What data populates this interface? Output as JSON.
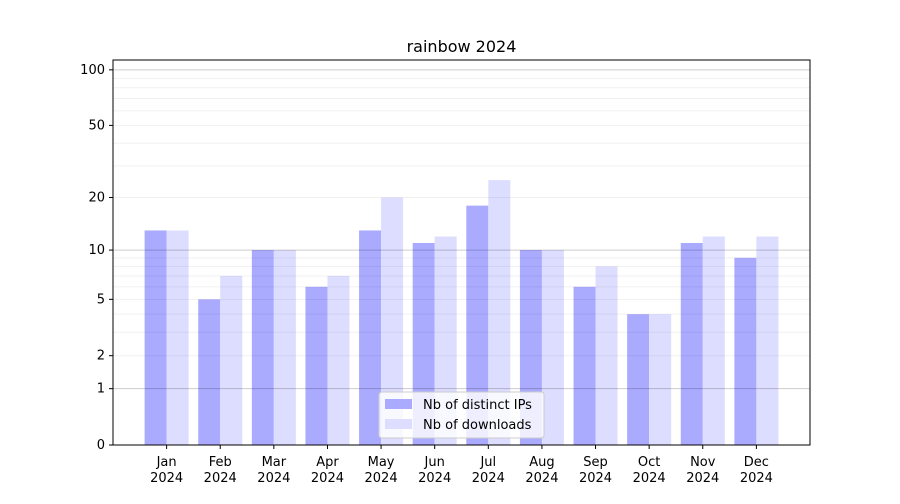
{
  "chart_data": {
    "type": "bar",
    "title": "rainbow 2024",
    "xlabel": "",
    "ylabel": "",
    "y_scale": "log10(y+1)",
    "ylim": [
      0,
      113
    ],
    "grid": "horizontal major and minor",
    "legend_position": "lower center",
    "categories": [
      "Jan\n2024",
      "Feb\n2024",
      "Mar\n2024",
      "Apr\n2024",
      "May\n2024",
      "Jun\n2024",
      "Jul\n2024",
      "Aug\n2024",
      "Sep\n2024",
      "Oct\n2024",
      "Nov\n2024",
      "Dec\n2024"
    ],
    "y_ticks": [
      0,
      1,
      2,
      5,
      10,
      20,
      50,
      100
    ],
    "series": [
      {
        "name": "Nb of distinct IPs",
        "color": "#aaaaff",
        "values": [
          13,
          5,
          10,
          6,
          13,
          11,
          18,
          10,
          6,
          4,
          11,
          9
        ]
      },
      {
        "name": "Nb of downloads",
        "color": "#ddddff",
        "values": [
          13,
          7,
          10,
          7,
          20,
          12,
          25,
          10,
          8,
          4,
          12,
          12
        ]
      }
    ]
  }
}
